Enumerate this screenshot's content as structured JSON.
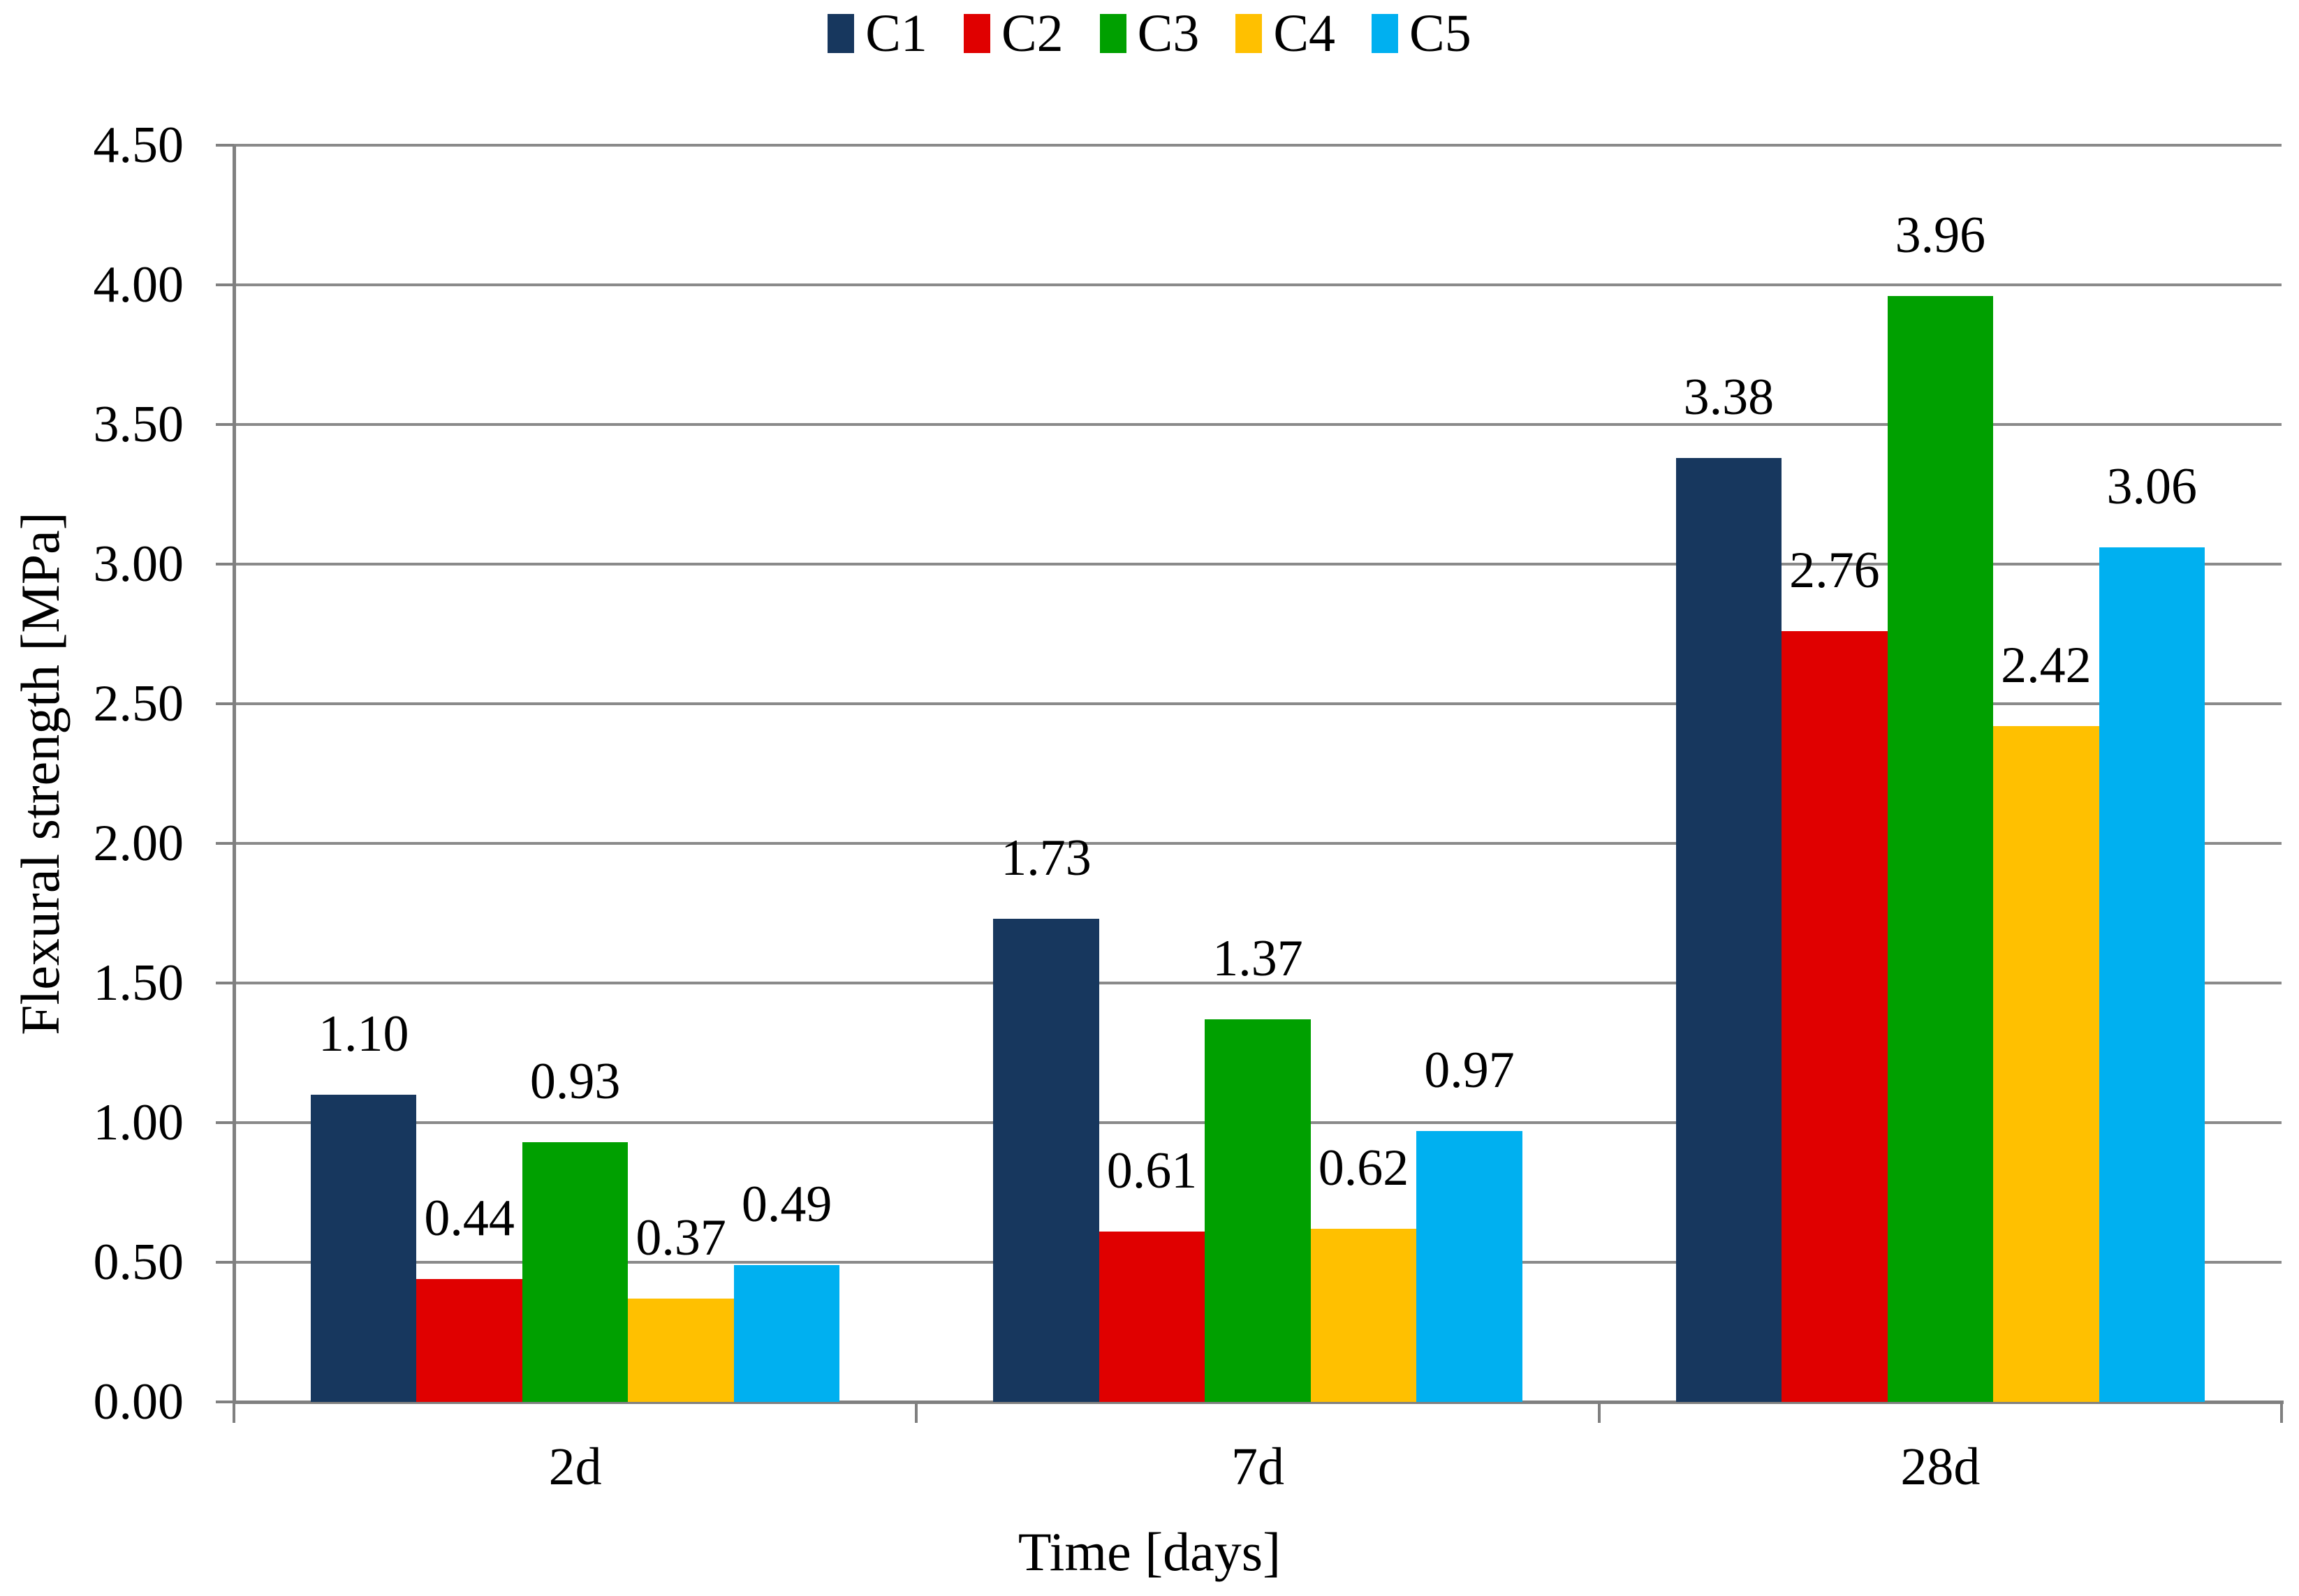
{
  "chart_data": {
    "type": "bar",
    "xlabel": "Time [days]",
    "ylabel": "Flexural strength [MPa]",
    "categories": [
      "2d",
      "7d",
      "28d"
    ],
    "series": [
      {
        "name": "C1",
        "color": "#17375E",
        "values": [
          1.1,
          1.73,
          3.38
        ]
      },
      {
        "name": "C2",
        "color": "#E00000",
        "values": [
          0.44,
          0.61,
          2.76
        ]
      },
      {
        "name": "C3",
        "color": "#00A000",
        "values": [
          0.93,
          1.37,
          3.96
        ]
      },
      {
        "name": "C4",
        "color": "#FFC000",
        "values": [
          0.37,
          0.62,
          2.42
        ]
      },
      {
        "name": "C5",
        "color": "#00B0F0",
        "values": [
          0.49,
          0.97,
          3.06
        ]
      }
    ],
    "ylim": [
      0,
      4.5
    ],
    "ytick_step": 0.5,
    "ytick_format_decimals": 2,
    "value_label_decimals": 2,
    "grid": true,
    "legend_position": "top",
    "axis_color": "#808080",
    "gridline_color": "#8A8A8A",
    "text_color": "#000000"
  }
}
